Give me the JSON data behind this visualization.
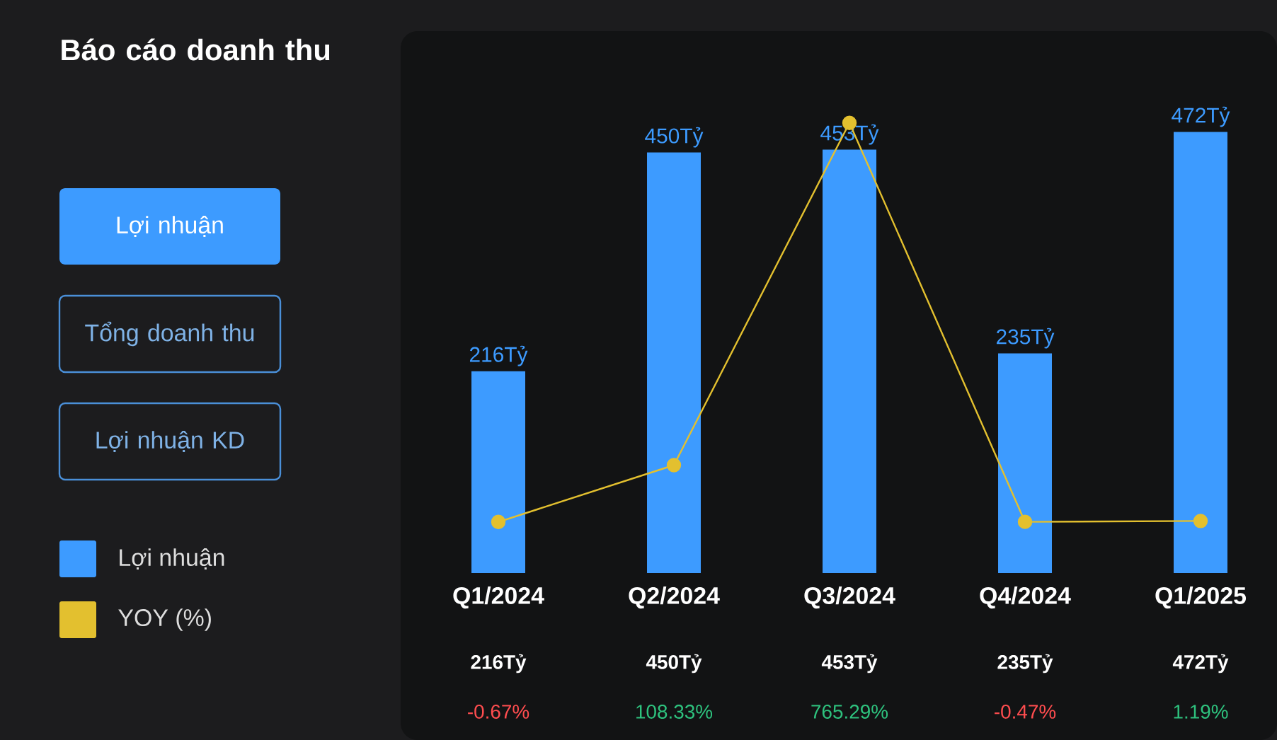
{
  "chart_data": {
    "type": "bar",
    "title": "Báo cáo doanh thu",
    "categories": [
      "Q1/2024",
      "Q2/2024",
      "Q3/2024",
      "Q4/2024",
      "Q1/2025"
    ],
    "series": [
      {
        "name": "Lợi nhuận",
        "color": "#3d9bff",
        "values": [
          216,
          450,
          453,
          235,
          472
        ],
        "value_labels": [
          "216Tỷ",
          "450Tỷ",
          "453Tỷ",
          "235Tỷ",
          "472Tỷ"
        ]
      },
      {
        "name": "YOY (%)",
        "type": "line",
        "axis": "y2",
        "color": "#e3c02f",
        "values": [
          -0.67,
          108.33,
          765.29,
          -0.47,
          1.19
        ],
        "value_labels": [
          "-0.67%",
          "108.33%",
          "765.29%",
          "-0.47%",
          "1.19%"
        ]
      }
    ],
    "marker": "circle",
    "legend": "left",
    "annotations": [
      "Lợi nhuận",
      "Tổng doanh thu",
      "Lợi nhuận KD"
    ]
  }
}
